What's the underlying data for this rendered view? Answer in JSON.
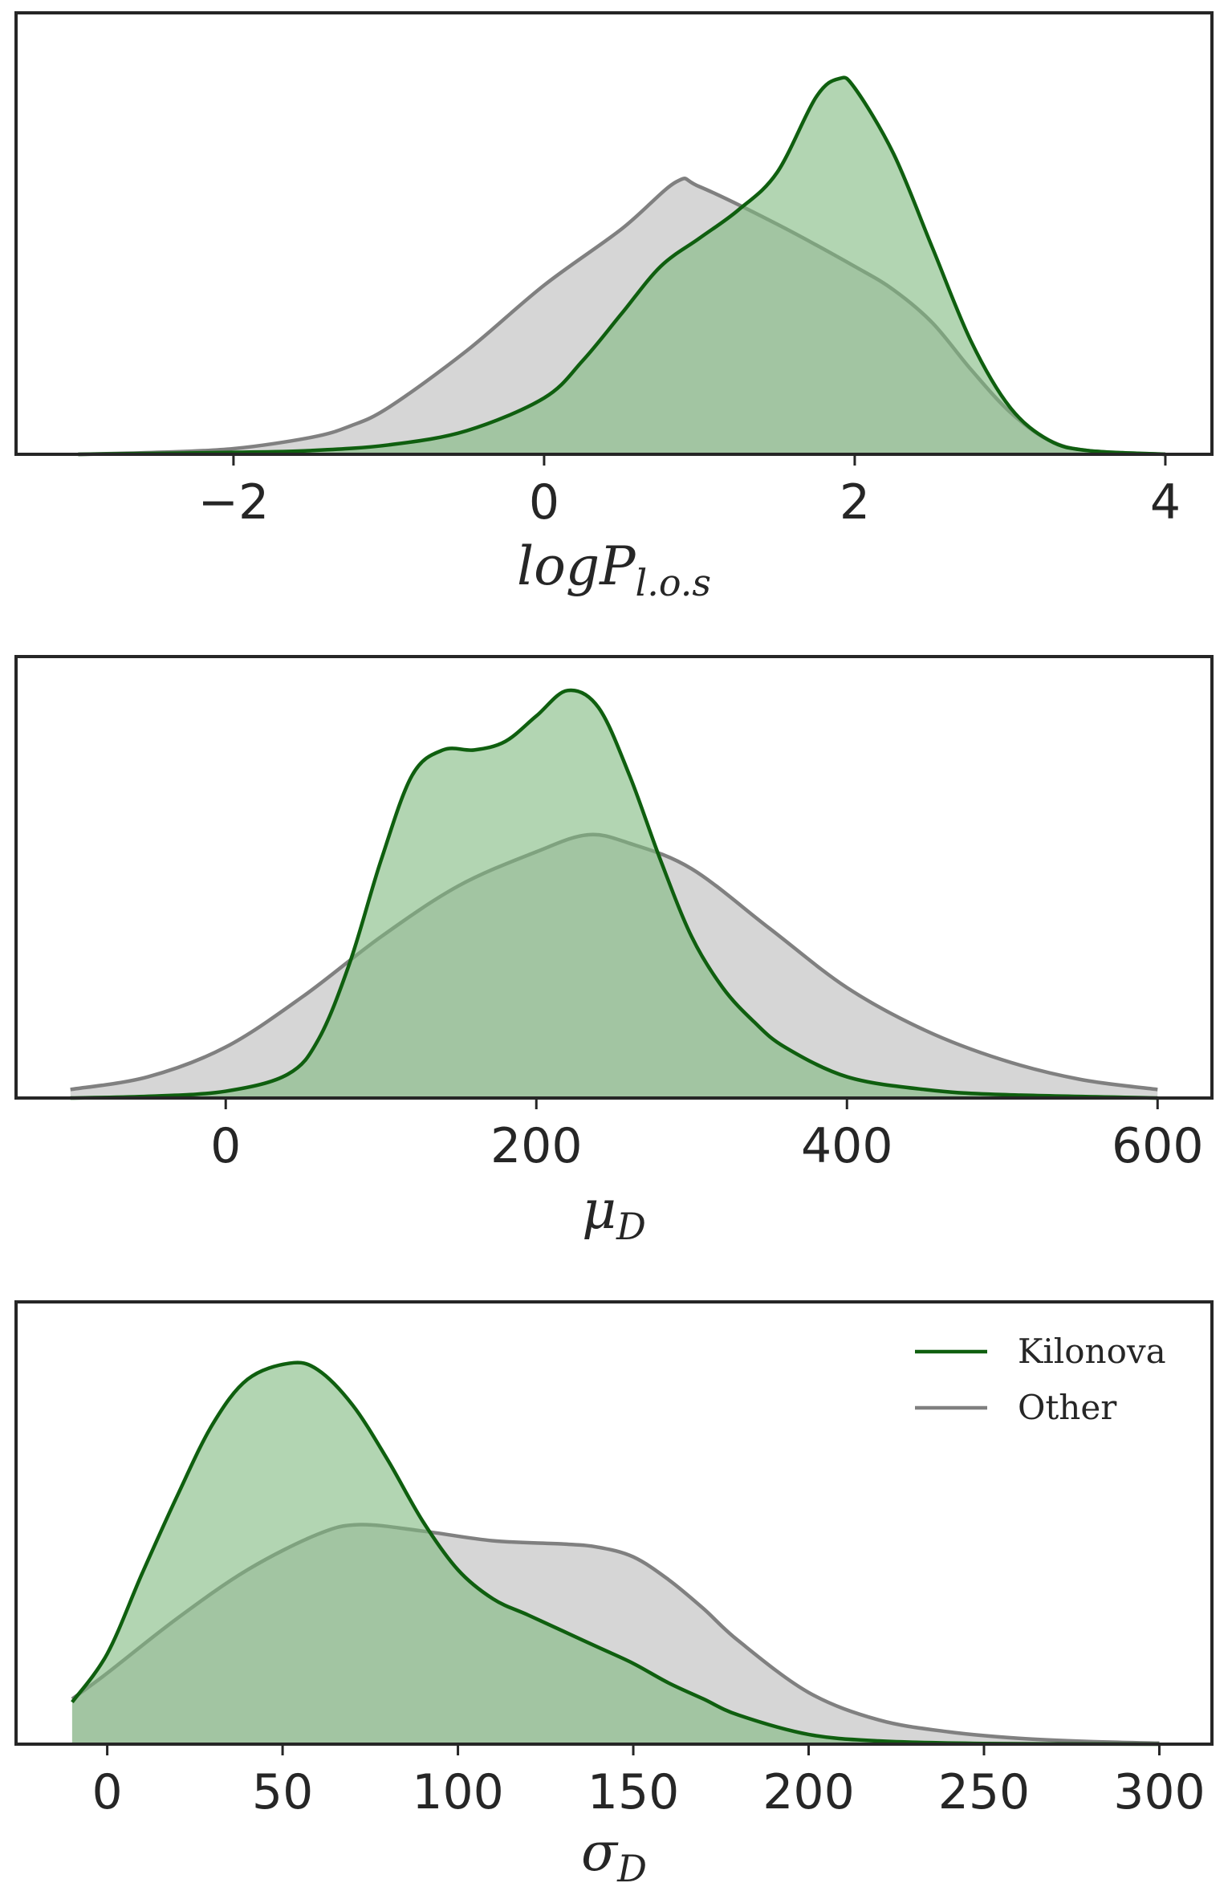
{
  "colors": {
    "kilonova_line": "#0f5f0f",
    "kilonova_fill": "#7fb97f",
    "other_line": "#808080",
    "other_fill": "#c8c8c8",
    "frame": "#262626"
  },
  "chart_data": [
    {
      "type": "area",
      "title": "",
      "xlabel": "logP",
      "xlabel_sub": "l.o.s",
      "ylabel": "",
      "xlim": [
        -3.4,
        4.3
      ],
      "ylim": [
        0,
        0.47
      ],
      "xticks": [
        -2,
        0,
        2,
        4
      ],
      "xtick_labels": [
        "−2",
        "0",
        "2",
        "4"
      ],
      "legend": null,
      "series": [
        {
          "name": "Kilonova",
          "color": "#0f5f0f",
          "x": [
            -3.0,
            -2.5,
            -2.0,
            -1.5,
            -1.0,
            -0.5,
            0.0,
            0.25,
            0.5,
            0.75,
            1.0,
            1.25,
            1.5,
            1.75,
            1.9,
            2.0,
            2.25,
            2.5,
            2.75,
            3.0,
            3.25,
            3.5,
            4.0
          ],
          "y": [
            0.0,
            0.001,
            0.002,
            0.004,
            0.01,
            0.025,
            0.06,
            0.1,
            0.15,
            0.2,
            0.23,
            0.26,
            0.3,
            0.38,
            0.4,
            0.39,
            0.32,
            0.22,
            0.12,
            0.05,
            0.015,
            0.004,
            0.0
          ]
        },
        {
          "name": "Other",
          "color": "#808080",
          "x": [
            -3.0,
            -2.5,
            -2.0,
            -1.5,
            -1.25,
            -1.0,
            -0.5,
            0.0,
            0.5,
            0.85,
            1.0,
            1.5,
            2.0,
            2.25,
            2.5,
            2.75,
            3.0,
            3.25,
            3.5,
            4.0
          ],
          "y": [
            0.0,
            0.002,
            0.006,
            0.018,
            0.03,
            0.05,
            0.11,
            0.18,
            0.24,
            0.29,
            0.285,
            0.245,
            0.2,
            0.175,
            0.14,
            0.09,
            0.045,
            0.015,
            0.004,
            0.0
          ]
        }
      ]
    },
    {
      "type": "area",
      "title": "",
      "xlabel": "μ",
      "xlabel_sub": "D",
      "ylabel": "",
      "xlim": [
        -135,
        635
      ],
      "ylim": [
        0,
        0.0052
      ],
      "xticks": [
        0,
        200,
        400,
        600
      ],
      "xtick_labels": [
        "0",
        "200",
        "400",
        "600"
      ],
      "legend": null,
      "series": [
        {
          "name": "Kilonova",
          "color": "#0f5f0f",
          "x": [
            -100,
            -50,
            0,
            40,
            60,
            80,
            100,
            120,
            140,
            160,
            180,
            200,
            220,
            240,
            260,
            280,
            300,
            320,
            340,
            360,
            400,
            450,
            500,
            600
          ],
          "y": [
            0.0,
            2e-05,
            8e-05,
            0.00028,
            0.0007,
            0.0016,
            0.0028,
            0.0038,
            0.0041,
            0.0041,
            0.0042,
            0.0045,
            0.0048,
            0.0046,
            0.0038,
            0.0028,
            0.0019,
            0.0013,
            0.0009,
            0.0006,
            0.00025,
            0.0001,
            4e-05,
            0.0
          ]
        },
        {
          "name": "Other",
          "color": "#808080",
          "x": [
            -100,
            -50,
            0,
            50,
            100,
            150,
            200,
            233,
            260,
            300,
            350,
            400,
            450,
            500,
            550,
            600
          ],
          "y": [
            0.0001,
            0.00025,
            0.0006,
            0.0012,
            0.0019,
            0.0025,
            0.0029,
            0.0031,
            0.003,
            0.0027,
            0.002,
            0.0013,
            0.0008,
            0.00045,
            0.00022,
            0.0001
          ]
        }
      ]
    },
    {
      "type": "area",
      "title": "",
      "xlabel": "σ",
      "xlabel_sub": "D",
      "ylabel": "",
      "xlim": [
        -26,
        315
      ],
      "ylim": [
        0,
        0.0137
      ],
      "xticks": [
        0,
        50,
        100,
        150,
        200,
        250,
        300
      ],
      "xtick_labels": [
        "0",
        "50",
        "100",
        "150",
        "200",
        "250",
        "300"
      ],
      "legend": {
        "location": "top-right",
        "entries": [
          "Kilonova",
          "Other"
        ]
      },
      "series": [
        {
          "name": "Kilonova",
          "color": "#0f5f0f",
          "x": [
            -10,
            0,
            10,
            20,
            30,
            40,
            52,
            60,
            70,
            80,
            90,
            100,
            110,
            120,
            130,
            140,
            150,
            160,
            170,
            180,
            200,
            220,
            250,
            300
          ],
          "y": [
            0.0013,
            0.0028,
            0.0053,
            0.0077,
            0.0099,
            0.0113,
            0.0118,
            0.0116,
            0.0105,
            0.0088,
            0.0069,
            0.0054,
            0.0045,
            0.004,
            0.0035,
            0.003,
            0.0025,
            0.0019,
            0.0014,
            0.0009,
            0.0003,
            0.0001,
            2e-05,
            0.0
          ]
        },
        {
          "name": "Other",
          "color": "#808080",
          "x": [
            -10,
            0,
            20,
            40,
            60,
            72,
            90,
            110,
            130,
            140,
            150,
            160,
            170,
            180,
            200,
            220,
            240,
            260,
            280,
            300
          ],
          "y": [
            0.0014,
            0.0022,
            0.0039,
            0.0054,
            0.0065,
            0.0068,
            0.0066,
            0.0063,
            0.0062,
            0.0061,
            0.0058,
            0.0051,
            0.0042,
            0.0032,
            0.0016,
            0.00075,
            0.00038,
            0.00018,
            8e-05,
            3e-05
          ]
        }
      ]
    }
  ]
}
